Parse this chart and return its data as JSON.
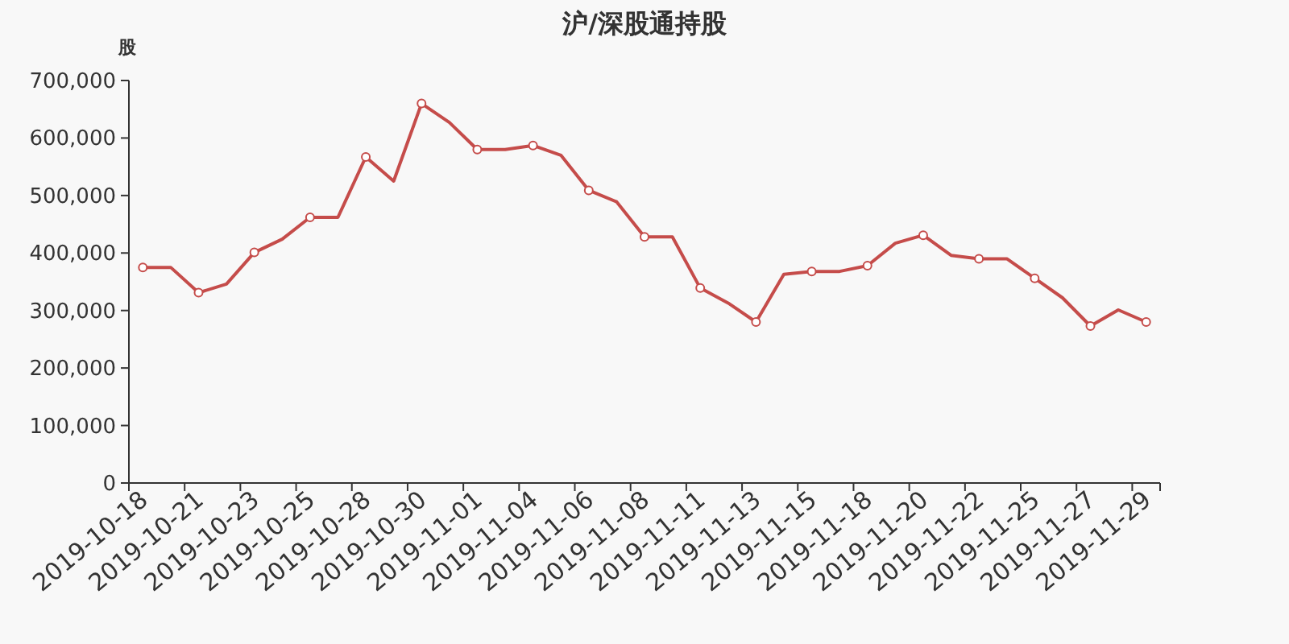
{
  "chart_data": {
    "type": "line",
    "title": "沪/深股通持股",
    "ylabel": "股",
    "categories": [
      "2019-10-18",
      null,
      "2019-10-21",
      null,
      "2019-10-23",
      null,
      "2019-10-25",
      null,
      "2019-10-28",
      null,
      "2019-10-30",
      null,
      "2019-11-01",
      null,
      "2019-11-04",
      null,
      "2019-11-06",
      null,
      "2019-11-08",
      null,
      "2019-11-11",
      null,
      "2019-11-13",
      null,
      "2019-11-15",
      null,
      "2019-11-18",
      null,
      "2019-11-20",
      null,
      "2019-11-22",
      null,
      "2019-11-25",
      null,
      "2019-11-27",
      null,
      "2019-11-29"
    ],
    "series": [
      {
        "color": "#c54c4a",
        "values": [
          375000,
          375000,
          331000,
          346000,
          401000,
          424000,
          462000,
          462000,
          567000,
          525000,
          660000,
          627000,
          580000,
          580000,
          587000,
          570000,
          509000,
          489000,
          428000,
          428000,
          339000,
          313000,
          280000,
          363000,
          368000,
          368000,
          378000,
          417000,
          431000,
          396000,
          390000,
          390000,
          356000,
          322000,
          273000,
          301000,
          280000
        ]
      }
    ],
    "ylim": [
      0,
      700000
    ],
    "yticks": [
      {
        "value": 0,
        "label": "0"
      },
      {
        "value": 100000,
        "label": "100,000"
      },
      {
        "value": 200000,
        "label": "200,000"
      },
      {
        "value": 300000,
        "label": "300,000"
      },
      {
        "value": 400000,
        "label": "400,000"
      },
      {
        "value": 500000,
        "label": "500,000"
      },
      {
        "value": 600000,
        "label": "600,000"
      },
      {
        "value": 700000,
        "label": "700,000"
      }
    ],
    "grid": false,
    "marker": "circle",
    "line_style": "solid"
  }
}
